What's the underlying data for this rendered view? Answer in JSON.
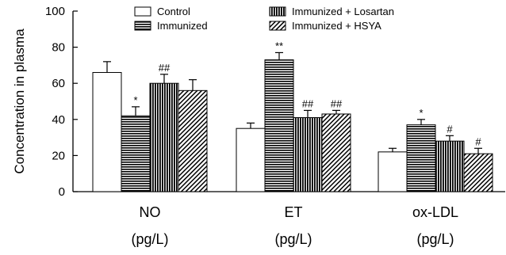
{
  "chart_data": {
    "type": "bar",
    "title": "",
    "xlabel": "",
    "ylabel": "Concentration in plasma",
    "ylim": [
      0,
      100
    ],
    "yticks": [
      0,
      20,
      40,
      60,
      80,
      100
    ],
    "grid": false,
    "legend_position": "top",
    "categories": [
      "NO",
      "ET",
      "ox-LDL"
    ],
    "units": [
      "(pg/L)",
      "(pg/L)",
      "(pg/L)"
    ],
    "series": [
      {
        "name": "Control",
        "pattern": "white",
        "values": [
          66,
          35,
          22
        ],
        "errors": [
          6,
          3,
          2
        ],
        "sig": [
          "",
          "",
          ""
        ]
      },
      {
        "name": "Immunized",
        "pattern": "horizontal",
        "values": [
          42,
          73,
          37
        ],
        "errors": [
          5,
          4,
          3
        ],
        "sig": [
          "*",
          "**",
          "*"
        ]
      },
      {
        "name": "Immunized + Losartan",
        "pattern": "vertical",
        "values": [
          60,
          41,
          28
        ],
        "errors": [
          5,
          4,
          3
        ],
        "sig": [
          "##",
          "##",
          "#"
        ]
      },
      {
        "name": "Immunized + HSYA",
        "pattern": "diagonal",
        "values": [
          56,
          43,
          21
        ],
        "errors": [
          6,
          2,
          3
        ],
        "sig": [
          "",
          "##",
          "#"
        ]
      }
    ]
  }
}
